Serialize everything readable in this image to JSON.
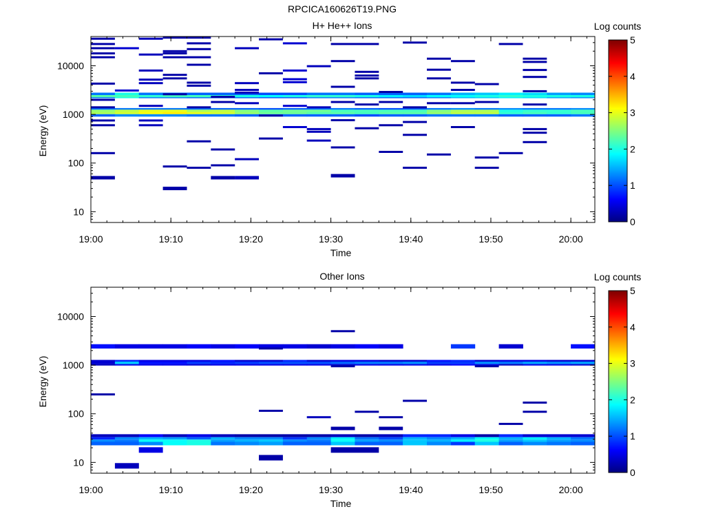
{
  "figure_title": "RPCICA160626T19.PNG",
  "colors": {
    "colormap": [
      "#00007f",
      "#0000ff",
      "#007fff",
      "#00ffff",
      "#7fff7f",
      "#ffff00",
      "#ff7f00",
      "#ff0000",
      "#7f0000"
    ]
  },
  "chart_data": [
    {
      "type": "heatmap",
      "title": "H+ He++ Ions",
      "xlabel": "Time",
      "ylabel": "Energy (eV)",
      "y_scale": "log",
      "xlim": [
        "19:00",
        "20:03"
      ],
      "ylim": [
        6,
        40000
      ],
      "x_ticks": [
        "19:00",
        "19:10",
        "19:20",
        "19:30",
        "19:40",
        "19:50",
        "20:00"
      ],
      "y_ticks": [
        10,
        100,
        1000,
        10000
      ],
      "y_tick_labels": [
        "10",
        "100",
        "1000",
        "10000"
      ],
      "colorbar": {
        "label": "Log counts",
        "min": 0,
        "max": 5,
        "ticks": [
          "0",
          "1",
          "2",
          "3",
          "4",
          "5"
        ]
      },
      "time_bins": [
        "19:00",
        "19:03",
        "19:06",
        "19:09",
        "19:12",
        "19:15",
        "19:18",
        "19:21",
        "19:24",
        "19:27",
        "19:30",
        "19:33",
        "19:36",
        "19:39",
        "19:42",
        "19:45",
        "19:48",
        "19:51",
        "19:54",
        "19:57",
        "20:00",
        "20:03"
      ],
      "bands": [
        {
          "e": [
            2150,
            2800
          ],
          "v": [
            1.2,
            2.0,
            1.2,
            1.2,
            1.1,
            1.1,
            1.1,
            1.0,
            1.0,
            1.2,
            1.2,
            1.1,
            1.1,
            1.1,
            1.2,
            1.5,
            1.6,
            1.8,
            1.7,
            1.4,
            1.3
          ]
        },
        {
          "e": [
            2250,
            2500
          ],
          "v": [
            2.3,
            2.2,
            2.1,
            2.2,
            2.2,
            2.1,
            2.0,
            1.9,
            2.0,
            2.1,
            2.1,
            2.0,
            1.8,
            1.7,
            1.9,
            1.9,
            2.0,
            2.1,
            2.0,
            2.0,
            2.0
          ]
        },
        {
          "e": [
            1250,
            1350
          ],
          "v": [
            1.2,
            1.2,
            1.2,
            1.2,
            1.2,
            1.1,
            1.1,
            1.0,
            1.1,
            1.2,
            1.2,
            1.1,
            1.0,
            1.1,
            1.2,
            1.3,
            1.2,
            1.3,
            1.2,
            1.2,
            1.3
          ]
        },
        {
          "e": [
            1120,
            1250
          ],
          "v": [
            2.6,
            2.8,
            3.0,
            3.0,
            2.7,
            2.8,
            2.5,
            2.3,
            2.4,
            2.4,
            2.2,
            2.2,
            2.2,
            2.2,
            2.5,
            2.7,
            2.7,
            2.0,
            2.1,
            2.1,
            2.2
          ]
        },
        {
          "e": [
            1010,
            1120
          ],
          "v": [
            2.7,
            2.9,
            3.1,
            3.2,
            3.0,
            2.9,
            2.6,
            2.4,
            2.4,
            2.3,
            2.3,
            2.2,
            2.3,
            2.3,
            2.6,
            2.8,
            2.8,
            2.1,
            2.2,
            2.1,
            2.2
          ]
        },
        {
          "e": [
            900,
            1010
          ],
          "v": [
            1.1,
            1.3,
            1.3,
            1.3,
            1.2,
            1.2,
            1.1,
            1.1,
            1.1,
            1.1,
            1.1,
            1.0,
            1.1,
            1.1,
            1.2,
            1.2,
            1.2,
            1.1,
            1.1,
            1.1,
            1.2
          ]
        }
      ],
      "sparse_counts": [
        {
          "t": 0,
          "e": [
            50,
            160,
            600,
            750,
            1400,
            2000,
            4300,
            15000,
            18000,
            23000,
            28000,
            36000
          ],
          "v": 0.2
        },
        {
          "t": 1,
          "e": [
            3100,
            23000
          ],
          "v": 0.4
        },
        {
          "t": 2,
          "e": [
            600,
            750,
            1500,
            4400,
            5200,
            8000,
            17000,
            36000
          ],
          "v": 0.3
        },
        {
          "t": 3,
          "e": [
            30,
            85,
            2600,
            5500,
            6500,
            15000,
            18000,
            20000,
            38000
          ],
          "v": 0.2
        },
        {
          "t": 4,
          "e": [
            80,
            280,
            1400,
            3900,
            4500,
            10500,
            15000,
            22000,
            29000,
            38000
          ],
          "v": 0.2
        },
        {
          "t": 5,
          "e": [
            50,
            90,
            190,
            1800,
            2300
          ],
          "v": 0.2
        },
        {
          "t": 6,
          "e": [
            50,
            120,
            1700,
            2800,
            3200,
            4400,
            23000
          ],
          "v": 0.3
        },
        {
          "t": 7,
          "e": [
            320,
            950,
            7000,
            35000
          ],
          "v": 0.2
        },
        {
          "t": 8,
          "e": [
            550,
            1500,
            4600,
            5300,
            8000,
            29000
          ],
          "v": 0.4
        },
        {
          "t": 9,
          "e": [
            290,
            440,
            500,
            1400,
            9800
          ],
          "v": 0.3
        },
        {
          "t": 10,
          "e": [
            55,
            210,
            760,
            1800,
            3700,
            12500,
            28000
          ],
          "v": 0.2
        },
        {
          "t": 11,
          "e": [
            520,
            1600,
            5500,
            6300,
            7500,
            28000
          ],
          "v": 0.2
        },
        {
          "t": 12,
          "e": [
            170,
            600,
            1800,
            2900
          ],
          "v": 0.2
        },
        {
          "t": 13,
          "e": [
            80,
            380,
            700,
            1400,
            30000
          ],
          "v": 0.2
        },
        {
          "t": 14,
          "e": [
            150,
            1700,
            5500,
            8300,
            14000
          ],
          "v": 0.2
        },
        {
          "t": 15,
          "e": [
            550,
            1700,
            3200,
            4500,
            12500
          ],
          "v": 0.2
        },
        {
          "t": 16,
          "e": [
            80,
            130,
            1800,
            4200
          ],
          "v": 0.2
        },
        {
          "t": 17,
          "e": [
            160,
            28000
          ],
          "v": 0.2
        },
        {
          "t": 18,
          "e": [
            270,
            420,
            500,
            1600,
            3000,
            5900,
            8200,
            12000,
            14000
          ],
          "v": 0.2
        }
      ]
    },
    {
      "type": "heatmap",
      "title": "Other Ions",
      "xlabel": "Time",
      "ylabel": "Energy (eV)",
      "y_scale": "log",
      "xlim": [
        "19:00",
        "20:03"
      ],
      "ylim": [
        6,
        40000
      ],
      "x_ticks": [
        "19:00",
        "19:10",
        "19:20",
        "19:30",
        "19:40",
        "19:50",
        "20:00"
      ],
      "y_ticks": [
        10,
        100,
        1000,
        10000
      ],
      "y_tick_labels": [
        "10",
        "100",
        "1000",
        "10000"
      ],
      "colorbar": {
        "label": "Log counts",
        "min": 0,
        "max": 5,
        "ticks": [
          "0",
          "1",
          "2",
          "3",
          "4",
          "5"
        ]
      },
      "time_bins": [
        "19:00",
        "19:03",
        "19:06",
        "19:09",
        "19:12",
        "19:15",
        "19:18",
        "19:21",
        "19:24",
        "19:27",
        "19:30",
        "19:33",
        "19:36",
        "19:39",
        "19:42",
        "19:45",
        "19:48",
        "19:51",
        "19:54",
        "19:57",
        "20:00",
        "20:03"
      ],
      "bands": [
        {
          "e": [
            2200,
            2700
          ],
          "v": [
            0.7,
            0.5,
            0.5,
            0.5,
            0.6,
            0.5,
            0.6,
            0.5,
            0.5,
            0.4,
            0.5,
            0.6,
            0.5,
            null,
            null,
            0.9,
            null,
            0.4,
            null,
            null,
            0.7
          ]
        },
        {
          "e": [
            1180,
            1280
          ],
          "v": [
            0.4,
            0.8,
            0.5,
            0.5,
            0.5,
            0.7,
            0.4,
            0.4,
            0.8,
            0.4,
            0.5,
            0.5,
            0.4,
            0.4,
            0.7,
            0.8,
            0.4,
            0.5,
            0.5,
            0.4,
            0.4
          ]
        },
        {
          "e": [
            1050,
            1180
          ],
          "v": [
            0.4,
            1.6,
            0.7,
            0.7,
            0.9,
            0.8,
            0.9,
            1.0,
            1.0,
            1.0,
            1.1,
            1.2,
            1.2,
            1.3,
            0.9,
            0.9,
            1.3,
            1.2,
            1.4,
            1.3,
            1.4
          ]
        },
        {
          "e": [
            980,
            1050
          ],
          "v": [
            0.3,
            0.5,
            0.5,
            0.5,
            0.4,
            0.5,
            0.5,
            0.5,
            0.5,
            0.5,
            0.4,
            0.5,
            0.5,
            0.5,
            0.5,
            0.6,
            0.5,
            0.3,
            0.5,
            0.5,
            0.4
          ]
        },
        {
          "e": [
            33,
            38
          ],
          "v": [
            0.3,
            0.3,
            0.6,
            0.3,
            0.5,
            0.3,
            0.2,
            0.2,
            0.2,
            0.2,
            0.3,
            0.2,
            0.3,
            0.8,
            0.8,
            0.5,
            0.2,
            0.8,
            0.4,
            0.4,
            0.4
          ]
        },
        {
          "e": [
            29.5,
            33
          ],
          "v": [
            0.8,
            1.3,
            1.5,
            1.4,
            1.1,
            1.5,
            1.3,
            1.3,
            0.9,
            1.3,
            1.8,
            1.2,
            1.0,
            1.5,
            1.3,
            1.5,
            1.9,
            1.5,
            1.8,
            1.5,
            1.2
          ]
        },
        {
          "e": [
            26.5,
            29.5
          ],
          "v": [
            1.3,
            1.2,
            1.9,
            1.9,
            2.0,
            1.4,
            1.5,
            1.6,
            1.3,
            1.2,
            1.9,
            1.4,
            1.3,
            1.6,
            1.5,
            1.8,
            2.0,
            1.4,
            1.6,
            1.4,
            1.3
          ]
        },
        {
          "e": [
            22.5,
            26.5
          ],
          "v": [
            1.1,
            1.1,
            1.3,
            1.9,
            2.0,
            1.2,
            1.3,
            1.4,
            1.1,
            1.1,
            1.6,
            1.1,
            1.1,
            1.6,
            1.3,
            0.9,
            1.6,
            1.1,
            1.3,
            1.2,
            1.1
          ]
        }
      ],
      "sparse_counts": [
        {
          "t": 0,
          "e": [
            250
          ],
          "v": 0.2
        },
        {
          "t": 1,
          "e": [
            8.5
          ],
          "v": 0.3
        },
        {
          "t": 2,
          "e": [
            18
          ],
          "v": 0.5
        },
        {
          "t": 7,
          "e": [
            12.5,
            115,
            2200
          ],
          "v": 0.2
        },
        {
          "t": 9,
          "e": [
            85
          ],
          "v": 0.3
        },
        {
          "t": 10,
          "e": [
            18,
            50,
            950,
            5000
          ],
          "v": 0.2
        },
        {
          "t": 11,
          "e": [
            18,
            110
          ],
          "v": 0.2
        },
        {
          "t": 12,
          "e": [
            50,
            85
          ],
          "v": 0.2
        },
        {
          "t": 13,
          "e": [
            185
          ],
          "v": 0.2
        },
        {
          "t": 16,
          "e": [
            950
          ],
          "v": 0.2
        },
        {
          "t": 17,
          "e": [
            62
          ],
          "v": 0.2
        },
        {
          "t": 18,
          "e": [
            110,
            170
          ],
          "v": 0.2
        }
      ]
    }
  ]
}
